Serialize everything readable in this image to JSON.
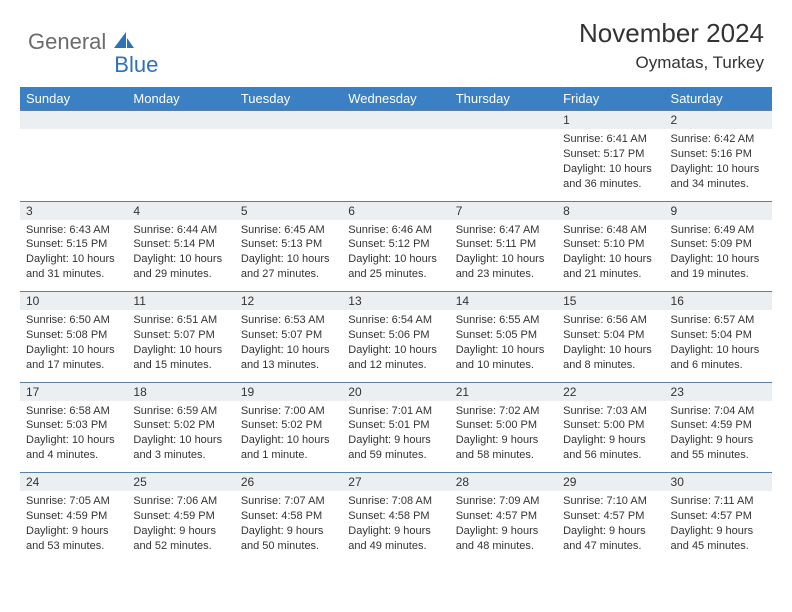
{
  "brand": {
    "part1": "General",
    "part2": "Blue"
  },
  "title": "November 2024",
  "location": "Oymatas, Turkey",
  "colors": {
    "header_bg": "#3b7fc4",
    "header_text": "#ffffff",
    "daynum_bg": "#eceff1",
    "border": "#5a7fa3",
    "text": "#333333",
    "brand_gray": "#6b6b6b",
    "brand_blue": "#2b72b9"
  },
  "weekdays": [
    "Sunday",
    "Monday",
    "Tuesday",
    "Wednesday",
    "Thursday",
    "Friday",
    "Saturday"
  ],
  "weeks": [
    [
      null,
      null,
      null,
      null,
      null,
      {
        "n": "1",
        "sr": "Sunrise: 6:41 AM",
        "ss": "Sunset: 5:17 PM",
        "dl": "Daylight: 10 hours and 36 minutes."
      },
      {
        "n": "2",
        "sr": "Sunrise: 6:42 AM",
        "ss": "Sunset: 5:16 PM",
        "dl": "Daylight: 10 hours and 34 minutes."
      }
    ],
    [
      {
        "n": "3",
        "sr": "Sunrise: 6:43 AM",
        "ss": "Sunset: 5:15 PM",
        "dl": "Daylight: 10 hours and 31 minutes."
      },
      {
        "n": "4",
        "sr": "Sunrise: 6:44 AM",
        "ss": "Sunset: 5:14 PM",
        "dl": "Daylight: 10 hours and 29 minutes."
      },
      {
        "n": "5",
        "sr": "Sunrise: 6:45 AM",
        "ss": "Sunset: 5:13 PM",
        "dl": "Daylight: 10 hours and 27 minutes."
      },
      {
        "n": "6",
        "sr": "Sunrise: 6:46 AM",
        "ss": "Sunset: 5:12 PM",
        "dl": "Daylight: 10 hours and 25 minutes."
      },
      {
        "n": "7",
        "sr": "Sunrise: 6:47 AM",
        "ss": "Sunset: 5:11 PM",
        "dl": "Daylight: 10 hours and 23 minutes."
      },
      {
        "n": "8",
        "sr": "Sunrise: 6:48 AM",
        "ss": "Sunset: 5:10 PM",
        "dl": "Daylight: 10 hours and 21 minutes."
      },
      {
        "n": "9",
        "sr": "Sunrise: 6:49 AM",
        "ss": "Sunset: 5:09 PM",
        "dl": "Daylight: 10 hours and 19 minutes."
      }
    ],
    [
      {
        "n": "10",
        "sr": "Sunrise: 6:50 AM",
        "ss": "Sunset: 5:08 PM",
        "dl": "Daylight: 10 hours and 17 minutes."
      },
      {
        "n": "11",
        "sr": "Sunrise: 6:51 AM",
        "ss": "Sunset: 5:07 PM",
        "dl": "Daylight: 10 hours and 15 minutes."
      },
      {
        "n": "12",
        "sr": "Sunrise: 6:53 AM",
        "ss": "Sunset: 5:07 PM",
        "dl": "Daylight: 10 hours and 13 minutes."
      },
      {
        "n": "13",
        "sr": "Sunrise: 6:54 AM",
        "ss": "Sunset: 5:06 PM",
        "dl": "Daylight: 10 hours and 12 minutes."
      },
      {
        "n": "14",
        "sr": "Sunrise: 6:55 AM",
        "ss": "Sunset: 5:05 PM",
        "dl": "Daylight: 10 hours and 10 minutes."
      },
      {
        "n": "15",
        "sr": "Sunrise: 6:56 AM",
        "ss": "Sunset: 5:04 PM",
        "dl": "Daylight: 10 hours and 8 minutes."
      },
      {
        "n": "16",
        "sr": "Sunrise: 6:57 AM",
        "ss": "Sunset: 5:04 PM",
        "dl": "Daylight: 10 hours and 6 minutes."
      }
    ],
    [
      {
        "n": "17",
        "sr": "Sunrise: 6:58 AM",
        "ss": "Sunset: 5:03 PM",
        "dl": "Daylight: 10 hours and 4 minutes."
      },
      {
        "n": "18",
        "sr": "Sunrise: 6:59 AM",
        "ss": "Sunset: 5:02 PM",
        "dl": "Daylight: 10 hours and 3 minutes."
      },
      {
        "n": "19",
        "sr": "Sunrise: 7:00 AM",
        "ss": "Sunset: 5:02 PM",
        "dl": "Daylight: 10 hours and 1 minute."
      },
      {
        "n": "20",
        "sr": "Sunrise: 7:01 AM",
        "ss": "Sunset: 5:01 PM",
        "dl": "Daylight: 9 hours and 59 minutes."
      },
      {
        "n": "21",
        "sr": "Sunrise: 7:02 AM",
        "ss": "Sunset: 5:00 PM",
        "dl": "Daylight: 9 hours and 58 minutes."
      },
      {
        "n": "22",
        "sr": "Sunrise: 7:03 AM",
        "ss": "Sunset: 5:00 PM",
        "dl": "Daylight: 9 hours and 56 minutes."
      },
      {
        "n": "23",
        "sr": "Sunrise: 7:04 AM",
        "ss": "Sunset: 4:59 PM",
        "dl": "Daylight: 9 hours and 55 minutes."
      }
    ],
    [
      {
        "n": "24",
        "sr": "Sunrise: 7:05 AM",
        "ss": "Sunset: 4:59 PM",
        "dl": "Daylight: 9 hours and 53 minutes."
      },
      {
        "n": "25",
        "sr": "Sunrise: 7:06 AM",
        "ss": "Sunset: 4:59 PM",
        "dl": "Daylight: 9 hours and 52 minutes."
      },
      {
        "n": "26",
        "sr": "Sunrise: 7:07 AM",
        "ss": "Sunset: 4:58 PM",
        "dl": "Daylight: 9 hours and 50 minutes."
      },
      {
        "n": "27",
        "sr": "Sunrise: 7:08 AM",
        "ss": "Sunset: 4:58 PM",
        "dl": "Daylight: 9 hours and 49 minutes."
      },
      {
        "n": "28",
        "sr": "Sunrise: 7:09 AM",
        "ss": "Sunset: 4:57 PM",
        "dl": "Daylight: 9 hours and 48 minutes."
      },
      {
        "n": "29",
        "sr": "Sunrise: 7:10 AM",
        "ss": "Sunset: 4:57 PM",
        "dl": "Daylight: 9 hours and 47 minutes."
      },
      {
        "n": "30",
        "sr": "Sunrise: 7:11 AM",
        "ss": "Sunset: 4:57 PM",
        "dl": "Daylight: 9 hours and 45 minutes."
      }
    ]
  ]
}
